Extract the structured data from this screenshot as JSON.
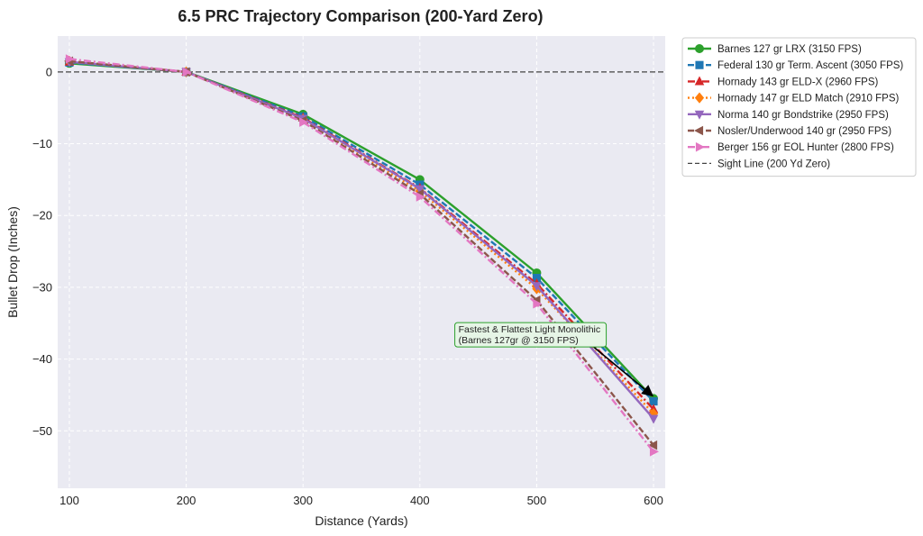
{
  "chart_data": {
    "type": "line",
    "title": "6.5 PRC Trajectory Comparison (200-Yard Zero)",
    "xlabel": "Distance (Yards)",
    "ylabel": "Bullet Drop (Inches)",
    "xlim": [
      90,
      610
    ],
    "ylim": [
      -58,
      5
    ],
    "xticks": [
      100,
      200,
      300,
      400,
      500,
      600
    ],
    "yticks": [
      0,
      -10,
      -20,
      -30,
      -40,
      -50
    ],
    "grid": true,
    "legend_position": "outside-right-top",
    "x": [
      100,
      200,
      300,
      400,
      500,
      600
    ],
    "series": [
      {
        "name": "Barnes 127 gr LRX (3150 FPS)",
        "color": "#2ca02c",
        "marker": "circle",
        "dash": "solid",
        "values": [
          1.2,
          0,
          -5.9,
          -15.0,
          -28.0,
          -45.5
        ]
      },
      {
        "name": "Federal 130 gr Term. Ascent (3050 FPS)",
        "color": "#1f77b4",
        "marker": "square",
        "dash": "dashed",
        "values": [
          1.3,
          0,
          -6.2,
          -15.7,
          -28.7,
          -45.9
        ]
      },
      {
        "name": "Hornady 143 gr ELD-X (2960 FPS)",
        "color": "#d62728",
        "marker": "triangle-up",
        "dash": "dashdot",
        "values": [
          1.4,
          0,
          -6.4,
          -16.2,
          -29.5,
          -47.0
        ]
      },
      {
        "name": "Hornady 147 gr ELD Match (2910 FPS)",
        "color": "#ff7f0e",
        "marker": "diamond",
        "dash": "dotted",
        "values": [
          1.5,
          0,
          -6.6,
          -16.6,
          -30.2,
          -47.6
        ]
      },
      {
        "name": "Norma 140 gr Bondstrike (2950 FPS)",
        "color": "#9467bd",
        "marker": "triangle-down",
        "dash": "solid",
        "values": [
          1.4,
          0,
          -6.5,
          -16.3,
          -29.8,
          -48.3
        ]
      },
      {
        "name": "Nosler/Underwood 140 gr (2950 FPS)",
        "color": "#8c564b",
        "marker": "triangle-left",
        "dash": "dashed",
        "values": [
          1.5,
          0,
          -6.8,
          -17.0,
          -31.8,
          -52.0
        ]
      },
      {
        "name": "Berger 156 gr EOL Hunter (2800 FPS)",
        "color": "#e377c2",
        "marker": "triangle-right",
        "dash": "dashdot",
        "values": [
          1.8,
          0,
          -7.0,
          -17.4,
          -32.3,
          -52.9
        ]
      }
    ],
    "reference_line": {
      "name": "Sight Line (200 Yd Zero)",
      "y": 0,
      "color": "#444444",
      "dash": "dashed"
    },
    "annotation": {
      "lines": [
        "Fastest & Flattest Light Monolithic",
        "(Barnes 127gr @ 3150 FPS)"
      ],
      "text_at": [
        433,
        -36.3
      ],
      "arrow_to": [
        600,
        -45.5
      ],
      "border_color": "#2ca02c",
      "fill_color": "#e6f5e6"
    }
  }
}
